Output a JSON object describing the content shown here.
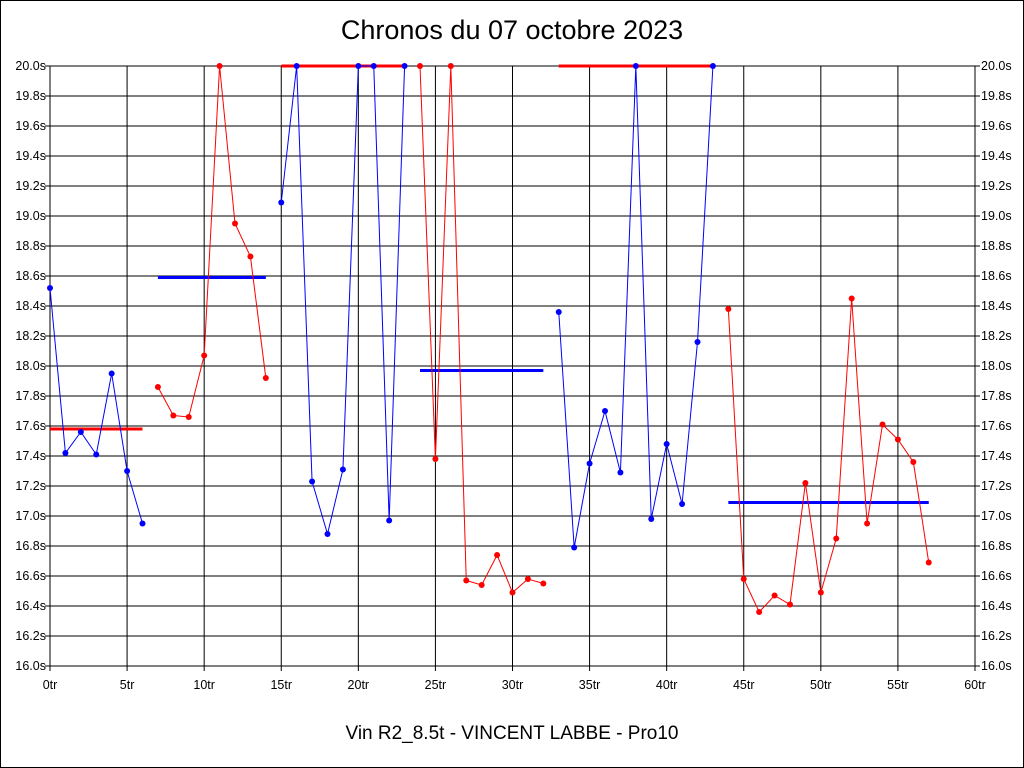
{
  "chart_data": {
    "type": "line",
    "title": "Chronos du 07 octobre 2023",
    "subtitle": "Vin R2_8.5t - VINCENT LABBE - Pro10",
    "xlabel": "",
    "ylabel": "",
    "xlim": [
      0,
      60
    ],
    "ylim": [
      16.0,
      20.0
    ],
    "grid": true,
    "x_ticks": [
      0,
      5,
      10,
      15,
      20,
      25,
      30,
      35,
      40,
      45,
      50,
      55,
      60
    ],
    "x_tick_labels": [
      "0tr",
      "5tr",
      "10tr",
      "15tr",
      "20tr",
      "25tr",
      "30tr",
      "35tr",
      "40tr",
      "45tr",
      "50tr",
      "55tr",
      "60tr"
    ],
    "y_ticks": [
      16.0,
      16.2,
      16.4,
      16.6,
      16.8,
      17.0,
      17.2,
      17.4,
      17.6,
      17.8,
      18.0,
      18.2,
      18.4,
      18.6,
      18.8,
      19.0,
      19.2,
      19.4,
      19.6,
      19.8,
      20.0
    ],
    "y_tick_labels": [
      "16.0s",
      "16.2s",
      "16.4s",
      "16.6s",
      "16.8s",
      "17.0s",
      "17.2s",
      "17.4s",
      "17.6s",
      "17.8s",
      "18.0s",
      "18.2s",
      "18.4s",
      "18.6s",
      "18.8s",
      "19.0s",
      "19.2s",
      "19.4s",
      "19.6s",
      "19.8s",
      "20.0s"
    ],
    "colors": {
      "blue": "#0000ff",
      "red": "#ff0000",
      "grid": "#000000"
    },
    "series": [
      {
        "color": "#0000ff",
        "points": [
          [
            0,
            18.52
          ],
          [
            1,
            17.42
          ],
          [
            2,
            17.56
          ],
          [
            3,
            17.41
          ],
          [
            4,
            17.95
          ],
          [
            5,
            17.3
          ],
          [
            6,
            16.95
          ]
        ],
        "mean": {
          "value": 17.58,
          "x_start": 0,
          "x_end": 6,
          "color": "#ff0000"
        }
      },
      {
        "color": "#ff0000",
        "points": [
          [
            7,
            17.86
          ],
          [
            8,
            17.67
          ],
          [
            9,
            17.66
          ],
          [
            10,
            18.07
          ],
          [
            11,
            20.0
          ],
          [
            12,
            18.95
          ],
          [
            13,
            18.73
          ],
          [
            14,
            17.92
          ]
        ],
        "mean": {
          "value": 18.59,
          "x_start": 7,
          "x_end": 14,
          "color": "#0000ff"
        }
      },
      {
        "color": "#0000ff",
        "points": [
          [
            15,
            19.09
          ],
          [
            16,
            20.0
          ],
          [
            17,
            17.23
          ],
          [
            18,
            16.88
          ],
          [
            19,
            17.31
          ],
          [
            20,
            20.0
          ],
          [
            21,
            20.0
          ],
          [
            22,
            16.97
          ],
          [
            23,
            20.0
          ]
        ],
        "mean": {
          "value": 20.0,
          "x_start": 15,
          "x_end": 23,
          "color": "#ff0000"
        }
      },
      {
        "color": "#ff0000",
        "points": [
          [
            24,
            20.0
          ],
          [
            25,
            17.38
          ],
          [
            26,
            20.0
          ],
          [
            27,
            16.57
          ],
          [
            28,
            16.54
          ],
          [
            29,
            16.74
          ],
          [
            30,
            16.49
          ],
          [
            31,
            16.58
          ],
          [
            32,
            16.55
          ]
        ],
        "mean": {
          "value": 17.97,
          "x_start": 24,
          "x_end": 32,
          "color": "#0000ff"
        }
      },
      {
        "color": "#0000ff",
        "points": [
          [
            33,
            18.36
          ],
          [
            34,
            16.79
          ],
          [
            35,
            17.35
          ],
          [
            36,
            17.7
          ],
          [
            37,
            17.29
          ],
          [
            38,
            20.0
          ],
          [
            39,
            16.98
          ],
          [
            40,
            17.48
          ],
          [
            41,
            17.08
          ],
          [
            42,
            18.16
          ],
          [
            43,
            20.0
          ]
        ],
        "mean": {
          "value": 20.0,
          "x_start": 33,
          "x_end": 43,
          "color": "#ff0000"
        }
      },
      {
        "color": "#ff0000",
        "points": [
          [
            44,
            18.38
          ],
          [
            45,
            16.58
          ],
          [
            46,
            16.36
          ],
          [
            47,
            16.47
          ],
          [
            48,
            16.41
          ],
          [
            49,
            17.22
          ],
          [
            50,
            16.49
          ],
          [
            51,
            16.85
          ],
          [
            52,
            18.45
          ],
          [
            53,
            16.95
          ],
          [
            54,
            17.61
          ],
          [
            55,
            17.51
          ],
          [
            56,
            17.36
          ],
          [
            57,
            16.69
          ]
        ],
        "mean": {
          "value": 17.09,
          "x_start": 44,
          "x_end": 57,
          "color": "#0000ff"
        }
      }
    ]
  }
}
